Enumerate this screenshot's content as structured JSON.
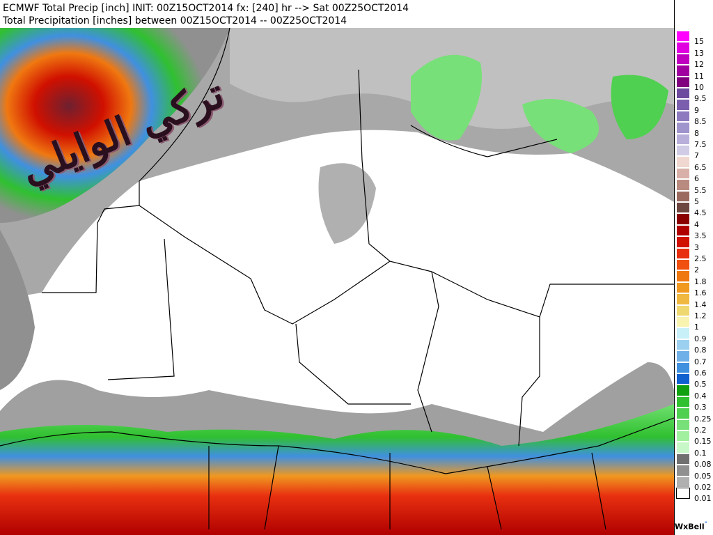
{
  "header": {
    "line1": "ECMWF Total Precip [inch] INIT: 00Z15OCT2014 fx: [240] hr --> Sat 00Z25OCT2014",
    "line2": "Total Precipitation [inches] between 00Z15OCT2014 -- 00Z25OCT2014"
  },
  "watermark": "تركي الوايلي",
  "credit": "WxBell",
  "legend": {
    "levels": [
      {
        "label": "15",
        "color": "#ff00ff"
      },
      {
        "label": "13",
        "color": "#e000e0"
      },
      {
        "label": "12",
        "color": "#c000c0"
      },
      {
        "label": "11",
        "color": "#a000a0"
      },
      {
        "label": "10",
        "color": "#800080"
      },
      {
        "label": "9.5",
        "color": "#6e4a9e"
      },
      {
        "label": "9",
        "color": "#7b5fae"
      },
      {
        "label": "8.5",
        "color": "#8d7abf"
      },
      {
        "label": "8",
        "color": "#a094cc"
      },
      {
        "label": "7.5",
        "color": "#b8b0da"
      },
      {
        "label": "7",
        "color": "#d0cce6"
      },
      {
        "label": "6.5",
        "color": "#f0d8d0"
      },
      {
        "label": "6",
        "color": "#d8b0a8"
      },
      {
        "label": "5.5",
        "color": "#b88a80"
      },
      {
        "label": "5",
        "color": "#9a6a60"
      },
      {
        "label": "4.5",
        "color": "#6e4640"
      },
      {
        "label": "4",
        "color": "#8a0000"
      },
      {
        "label": "3.5",
        "color": "#b00000"
      },
      {
        "label": "3",
        "color": "#d01000"
      },
      {
        "label": "2.5",
        "color": "#e83010"
      },
      {
        "label": "2",
        "color": "#f05010"
      },
      {
        "label": "1.8",
        "color": "#f07810"
      },
      {
        "label": "1.6",
        "color": "#f09820"
      },
      {
        "label": "1.4",
        "color": "#f0b840"
      },
      {
        "label": "1.2",
        "color": "#f0d870"
      },
      {
        "label": "1",
        "color": "#f8f4b0"
      },
      {
        "label": "0.9",
        "color": "#c8f0f8"
      },
      {
        "label": "0.8",
        "color": "#9cd0f0"
      },
      {
        "label": "0.7",
        "color": "#70b0e8"
      },
      {
        "label": "0.6",
        "color": "#4090e0"
      },
      {
        "label": "0.5",
        "color": "#1060d0"
      },
      {
        "label": "0.4",
        "color": "#10a010"
      },
      {
        "label": "0.3",
        "color": "#30c030"
      },
      {
        "label": "0.25",
        "color": "#50d050"
      },
      {
        "label": "0.2",
        "color": "#78e078"
      },
      {
        "label": "0.15",
        "color": "#a0f0a0"
      },
      {
        "label": "0.1",
        "color": "#c8f8c8"
      },
      {
        "label": "0.08",
        "color": "#707070"
      },
      {
        "label": "0.05",
        "color": "#909090"
      },
      {
        "label": "0.02",
        "color": "#b0b0b0"
      },
      {
        "label": "0.01",
        "color": "#ffffff"
      }
    ]
  }
}
